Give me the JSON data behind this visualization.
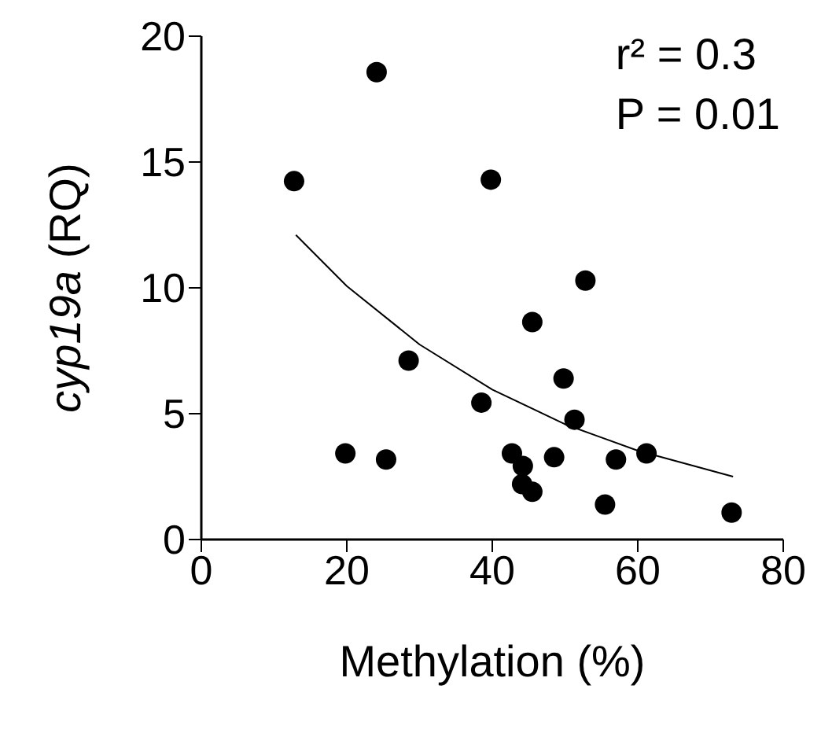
{
  "chart_data": {
    "type": "scatter",
    "xlabel": "Methylation (%)",
    "ylabel": "cyp19a (RQ)",
    "annotations": [
      "r² = 0.3",
      "P = 0.01"
    ],
    "xlim": [
      0,
      80
    ],
    "xticks": [
      0,
      20,
      40,
      60,
      80
    ],
    "ylim": [
      0,
      20
    ],
    "yticks": [
      0,
      5,
      10,
      15,
      20
    ],
    "grid": false,
    "legend": false,
    "marker": "circle",
    "series": [
      {
        "color": "#000000",
        "x": [
          12.75,
          24.1,
          39.8,
          52.8,
          45.5,
          28.5,
          49.8,
          38.5,
          51.3,
          19.8,
          25.4,
          42.7,
          44.2,
          44.1,
          45.5,
          48.5,
          57.0,
          61.2,
          55.5,
          72.9
        ],
        "values": [
          14.24,
          18.57,
          14.3,
          10.29,
          8.64,
          7.11,
          6.4,
          5.44,
          4.76,
          3.42,
          3.18,
          3.42,
          2.92,
          2.2,
          1.9,
          3.27,
          3.18,
          3.42,
          1.39,
          1.07
        ]
      },
      {
        "type": "line",
        "marker": "none",
        "color": "#000000",
        "x": [
          13,
          20,
          30,
          40,
          50,
          60,
          73.1
        ],
        "values": [
          12.1,
          10.07,
          7.75,
          5.96,
          4.58,
          3.53,
          2.5
        ]
      }
    ]
  }
}
